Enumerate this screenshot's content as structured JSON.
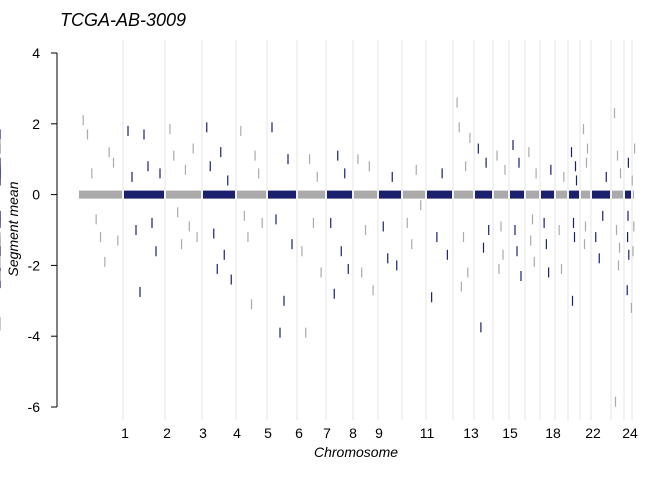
{
  "chart_data": {
    "type": "scatter",
    "title": "TCGA-AB-3009",
    "xlabel": "Chromosome",
    "ylabel": "Segment mean",
    "ylim": [
      -6.3,
      4.2
    ],
    "y_ticks": [
      -6,
      -4,
      -2,
      0,
      2,
      4
    ],
    "grid": "vertical chromosome boundaries",
    "legend": "none",
    "colors": {
      "odd_chromosomes": "#aaaaaa",
      "even_chromosomes": "#1a1f6e",
      "boundary_line": "#e6e6e6",
      "axis": "#000000"
    },
    "chromosomes": [
      {
        "label": "1"
      },
      {
        "label": ""
      },
      {
        "label": "2"
      },
      {
        "label": ""
      },
      {
        "label": "3"
      },
      {
        "label": ""
      },
      {
        "label": "4"
      },
      {
        "label": ""
      },
      {
        "label": "5"
      },
      {
        "label": ""
      },
      {
        "label": "6"
      },
      {
        "label": ""
      },
      {
        "label": "7"
      },
      {
        "label": ""
      },
      {
        "label": "8"
      },
      {
        "label": ""
      },
      {
        "label": "9"
      },
      {
        "label": ""
      },
      {
        "label": ""
      },
      {
        "label": "11"
      },
      {
        "label": ""
      },
      {
        "label": ""
      },
      {
        "label": "13"
      },
      {
        "label": ""
      },
      {
        "label": "15"
      },
      {
        "label": ""
      },
      {
        "label": ""
      },
      {
        "label": "18"
      },
      {
        "label": ""
      },
      {
        "label": ""
      },
      {
        "label": ""
      },
      {
        "label": "22"
      },
      {
        "label": ""
      },
      {
        "label": "24"
      }
    ],
    "outlier_segments": [
      {
        "chromosome_index": 0,
        "values": [
          2.1,
          1.7,
          0.6,
          -0.7,
          -1.2,
          -1.9,
          1.2,
          0.9,
          -1.3
        ]
      },
      {
        "chromosome_index": 1,
        "values": [
          1.8,
          0.5,
          -1.0,
          -2.75,
          1.7,
          0.8,
          -0.8,
          -1.6,
          0.6
        ]
      },
      {
        "chromosome_index": 2,
        "values": [
          1.85,
          1.1,
          -0.5,
          -1.4,
          0.7,
          -0.9,
          1.3,
          -1.2
        ]
      },
      {
        "chromosome_index": 3,
        "values": [
          1.9,
          0.8,
          -1.1,
          -2.1,
          1.2,
          -1.7,
          0.4,
          -2.4
        ]
      },
      {
        "chromosome_index": 4,
        "values": [
          1.8,
          -0.6,
          -1.2,
          -3.1,
          1.1,
          0.6,
          -0.8
        ]
      },
      {
        "chromosome_index": 5,
        "values": [
          1.9,
          -0.7,
          -3.9,
          -3.0,
          1.0,
          -1.4
        ]
      },
      {
        "chromosome_index": 6,
        "values": [
          -1.6,
          -3.9,
          1.0,
          -0.8,
          0.5,
          -2.2
        ]
      },
      {
        "chromosome_index": 7,
        "values": [
          -0.8,
          -2.8,
          1.1,
          -1.6,
          0.6,
          -2.1
        ]
      },
      {
        "chromosome_index": 8,
        "values": [
          1.0,
          -2.2,
          -1.0,
          0.8,
          -2.7
        ]
      },
      {
        "chromosome_index": 9,
        "values": [
          -0.9,
          -1.8,
          0.5,
          -2.0
        ]
      },
      {
        "chromosome_index": 10,
        "values": [
          -0.8,
          -1.4,
          0.7,
          -0.3
        ]
      },
      {
        "chromosome_index": 11,
        "values": [
          -2.9,
          -1.2,
          0.6,
          -1.7
        ]
      },
      {
        "chromosome_index": 12,
        "values": [
          2.6,
          1.9,
          -2.6,
          -1.2,
          0.8,
          -2.2,
          1.6
        ]
      },
      {
        "chromosome_index": 13,
        "values": [
          1.3,
          -3.75,
          -1.5,
          0.9,
          -1.0
        ]
      },
      {
        "chromosome_index": 14,
        "values": [
          1.1,
          -2.1,
          -0.9,
          -1.7,
          0.7
        ]
      },
      {
        "chromosome_index": 15,
        "values": [
          1.4,
          -1.0,
          -1.6,
          0.9,
          -2.3
        ]
      },
      {
        "chromosome_index": 16,
        "values": [
          1.2,
          -1.3,
          -0.7,
          -1.9,
          0.6
        ]
      },
      {
        "chromosome_index": 17,
        "values": [
          -0.8,
          -1.4,
          -2.2,
          0.7
        ]
      },
      {
        "chromosome_index": 18,
        "values": [
          -1.0,
          -2.1,
          0.5
        ]
      },
      {
        "chromosome_index": 19,
        "values": [
          1.2,
          -3.0,
          -0.8,
          -1.2,
          0.8,
          0.4
        ]
      },
      {
        "chromosome_index": 20,
        "values": [
          1.85,
          -1.4,
          -0.9,
          0.9,
          1.3
        ]
      },
      {
        "chromosome_index": 21,
        "values": [
          -1.2,
          -1.8,
          -0.6,
          0.5
        ]
      },
      {
        "chromosome_index": 22,
        "values": [
          2.3,
          -5.85,
          -1.0,
          1.1,
          -2.0,
          -1.5,
          0.6
        ]
      },
      {
        "chromosome_index": 23,
        "values": [
          -2.7,
          -1.2,
          -0.6,
          0.9,
          -1.7
        ]
      },
      {
        "chromosome_index": 24,
        "values": [
          1.3,
          -0.9,
          -1.6,
          0.4,
          -3.2
        ]
      },
      {
        "chromosome_index": 25,
        "values": [
          1.0,
          0.5,
          -0.9,
          -2.1
        ]
      },
      {
        "chromosome_index": 26,
        "values": [
          0.7,
          -0.7,
          -1.4,
          -1.2
        ]
      },
      {
        "chromosome_index": 27,
        "values": [
          1.3,
          0.6,
          -0.8,
          -1.6,
          -2.2
        ]
      },
      {
        "chromosome_index": 28,
        "values": [
          -0.6,
          -1.9,
          0.5
        ]
      },
      {
        "chromosome_index": 29,
        "values": [
          1.7,
          0.6,
          -0.6,
          -2.5
        ]
      },
      {
        "chromosome_index": 30,
        "values": [
          1.4,
          0.4,
          -3.6,
          -1.3
        ]
      },
      {
        "chromosome_index": 31,
        "values": [
          0.7,
          0.4,
          0.9
        ]
      },
      {
        "chromosome_index": 32,
        "values": [
          -1.3,
          -2.3,
          1.3,
          -3.7
        ]
      },
      {
        "chromosome_index": 33,
        "values": []
      }
    ],
    "chromosome_33_baseline": -0.4
  }
}
